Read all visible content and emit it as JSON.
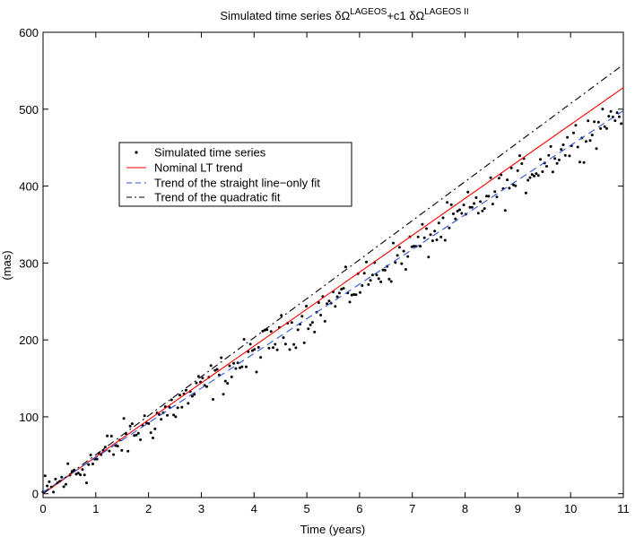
{
  "chart_data": {
    "type": "scatter",
    "title": {
      "prefix": "Simulated time series ",
      "term1": "δΩ",
      "sup1": "LAGEOS",
      "middle": "+c1 ",
      "term2": "δΩ",
      "sup2": "LAGEOS II"
    },
    "xlabel": "Time (years)",
    "ylabel": "(mas)",
    "xlim": [
      0,
      11
    ],
    "ylim": [
      -5,
      600
    ],
    "xticks": [
      0,
      1,
      2,
      3,
      4,
      5,
      6,
      7,
      8,
      9,
      10,
      11
    ],
    "yticks": [
      0,
      100,
      200,
      300,
      400,
      500,
      600
    ],
    "legend_position": "upper-left",
    "series": [
      {
        "name": "Simulated time series",
        "kind": "points",
        "color": "#000000",
        "trend_slope": 45.5,
        "noise_amplitude": 18,
        "n_points": 280
      },
      {
        "name": "Nominal LT trend",
        "kind": "line",
        "color": "#ff0000",
        "dash": "solid",
        "x": [
          0,
          11
        ],
        "y": [
          0,
          528
        ]
      },
      {
        "name": "Trend of the straight line−only fit",
        "kind": "line",
        "color": "#2e4fd6",
        "dash": "dashed",
        "x": [
          0,
          11
        ],
        "y": [
          2,
          498
        ]
      },
      {
        "name": " Trend of the quadratic fit",
        "kind": "line",
        "color": "#000000",
        "dash": "dashdot",
        "x": [
          0,
          11
        ],
        "y": [
          0,
          558
        ]
      }
    ]
  }
}
